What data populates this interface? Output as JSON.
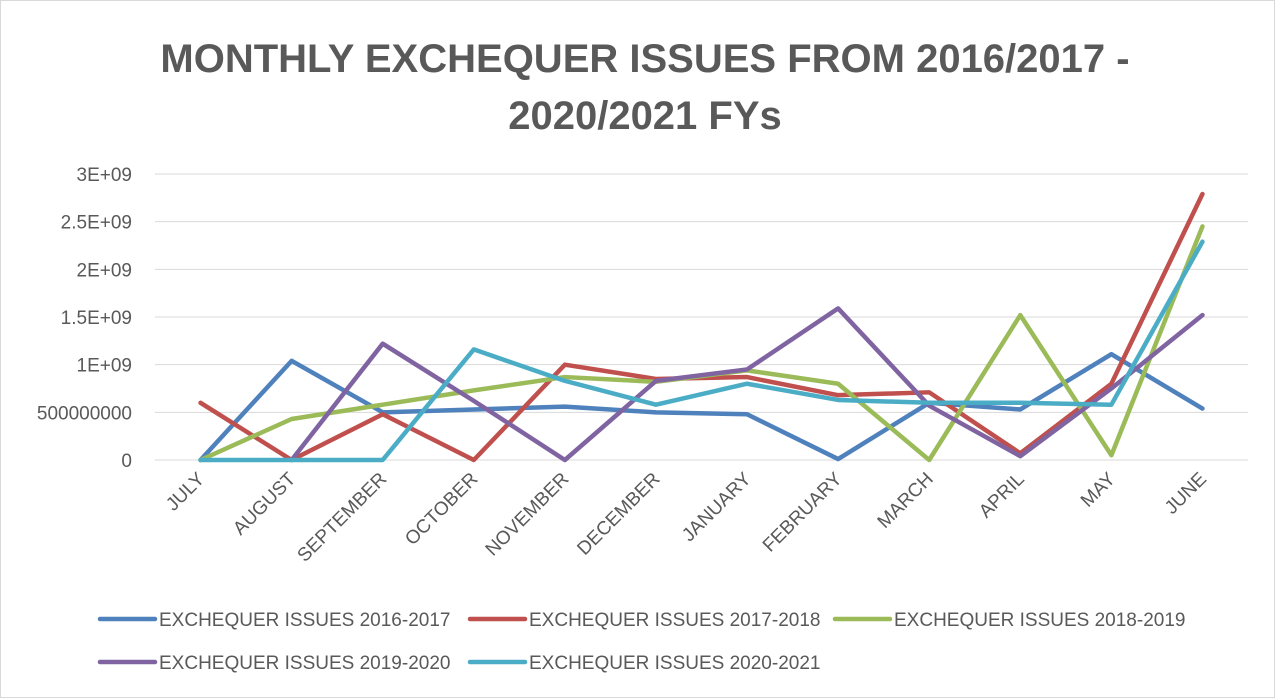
{
  "chart_data": {
    "type": "line",
    "title": [
      "MONTHLY EXCHEQUER ISSUES FROM 2016/2017 -",
      "2020/2021 FYs"
    ],
    "categories": [
      "JULY",
      "AUGUST",
      "SEPTEMBER",
      "OCTOBER",
      "NOVEMBER",
      "DECEMBER",
      "JANUARY",
      "FEBRUARY",
      "MARCH",
      "APRIL",
      "MAY",
      "JUNE"
    ],
    "series": [
      {
        "name": "EXCHEQUER ISSUES 2016-2017",
        "color": "#4f81bd",
        "values": [
          0,
          1040000000,
          500000000,
          530000000,
          560000000,
          500000000,
          480000000,
          10000000,
          600000000,
          530000000,
          1110000000,
          540000000
        ]
      },
      {
        "name": "EXCHEQUER ISSUES 2017-2018",
        "color": "#c0504d",
        "values": [
          600000000,
          0,
          480000000,
          0,
          1000000000,
          850000000,
          870000000,
          680000000,
          710000000,
          70000000,
          800000000,
          2790000000
        ]
      },
      {
        "name": "EXCHEQUER ISSUES 2018-2019",
        "color": "#9bbb59",
        "values": [
          0,
          430000000,
          580000000,
          730000000,
          870000000,
          820000000,
          940000000,
          800000000,
          0,
          1520000000,
          50000000,
          2450000000
        ]
      },
      {
        "name": "EXCHEQUER ISSUES 2019-2020",
        "color": "#8064a2",
        "values": [
          null,
          0,
          1220000000,
          620000000,
          0,
          830000000,
          950000000,
          1590000000,
          570000000,
          40000000,
          750000000,
          1520000000
        ]
      },
      {
        "name": "EXCHEQUER ISSUES 2020-2021",
        "color": "#4bacc6",
        "values": [
          0,
          0,
          0,
          1160000000,
          830000000,
          580000000,
          800000000,
          630000000,
          600000000,
          600000000,
          580000000,
          2290000000
        ]
      }
    ],
    "ylim": [
      0,
      3000000000
    ],
    "yticks": [
      0,
      500000000,
      {
        "value": 1000000000,
        "label": "1E+09"
      },
      {
        "value": 1500000000,
        "label": "1.5E+09"
      },
      {
        "value": 2000000000,
        "label": "2E+09"
      },
      {
        "value": 2500000000,
        "label": "2.5E+09"
      },
      {
        "value": 3000000000,
        "label": "3E+09"
      }
    ],
    "grid": true,
    "legend": "bottom"
  }
}
